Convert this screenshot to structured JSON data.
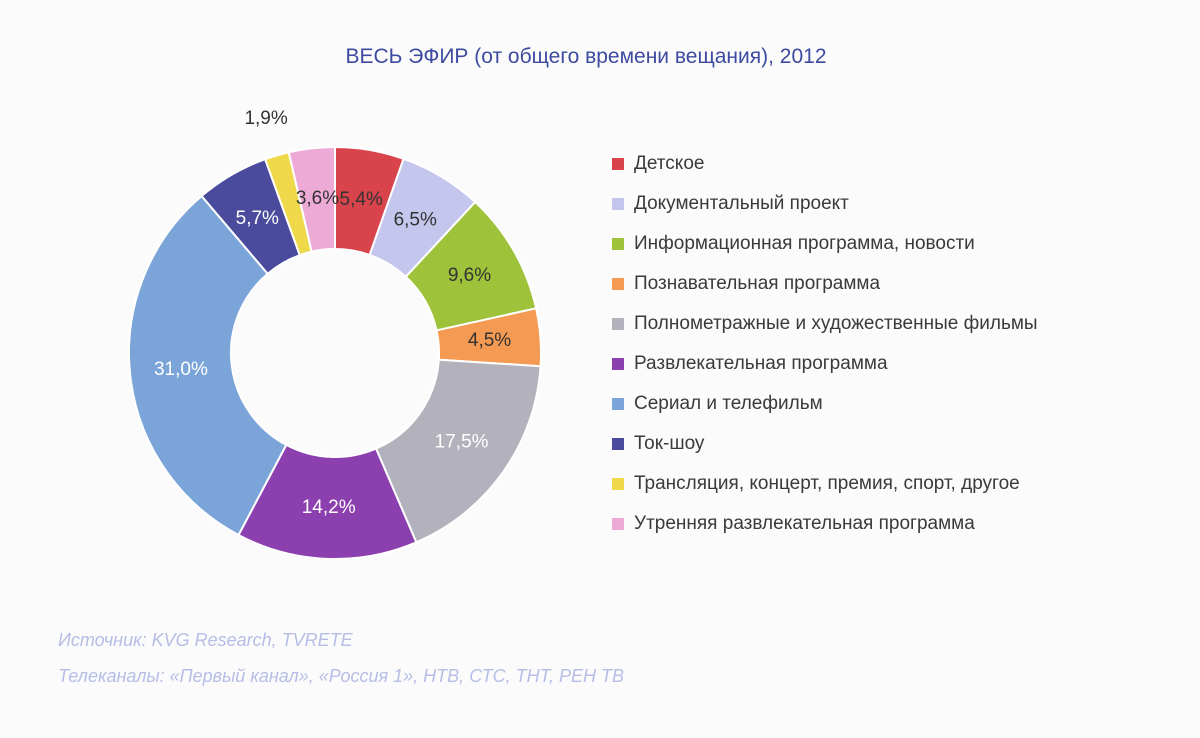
{
  "chart_data": {
    "type": "pie",
    "title": "ВЕСЬ ЭФИР (от общего времени вещания), 2012",
    "legend_position": "right",
    "donut": true,
    "series": [
      {
        "label": "Детское",
        "value": 5.4,
        "text": "5,4%",
        "color": "#d9434b",
        "label_color": "#333333"
      },
      {
        "label": "Документальный проект",
        "value": 6.5,
        "text": "6,5%",
        "color": "#c4c6ed",
        "label_color": "#333333"
      },
      {
        "label": "Информационная программа, новости",
        "value": 9.6,
        "text": "9,6%",
        "color": "#9fc23b",
        "label_color": "#333333"
      },
      {
        "label": "Познавательная программа",
        "value": 4.5,
        "text": "4,5%",
        "color": "#f49a52",
        "label_color": "#333333"
      },
      {
        "label": "Полнометражные и художественные фильмы",
        "value": 17.5,
        "text": "17,5%",
        "color": "#b3b1bb",
        "label_color": "#ffffff"
      },
      {
        "label": "Развлекательная программа",
        "value": 14.2,
        "text": "14,2%",
        "color": "#8c3fae",
        "label_color": "#ffffff"
      },
      {
        "label": "Сериал и телефильм",
        "value": 31.0,
        "text": "31,0%",
        "color": "#7ba5d9",
        "label_color": "#ffffff"
      },
      {
        "label": "Ток-шоу",
        "value": 5.7,
        "text": "5,7%",
        "color": "#4a4b9c",
        "label_color": "#ffffff"
      },
      {
        "label": "Трансляция, концерт, премия, спорт, другое",
        "value": 1.9,
        "text": "1,9%",
        "color": "#efd849",
        "label_color": "#333333"
      },
      {
        "label": "Утренняя развлекательная программа",
        "value": 3.6,
        "text": "3,6%",
        "color": "#eeaad7",
        "label_color": "#333333"
      }
    ]
  },
  "footer": {
    "source": "Источник: KVG Research, TVRETE",
    "channels": "Телеканалы: «Первый канал», «Россия 1», НТВ, СТС, ТНТ, РЕН ТВ"
  }
}
